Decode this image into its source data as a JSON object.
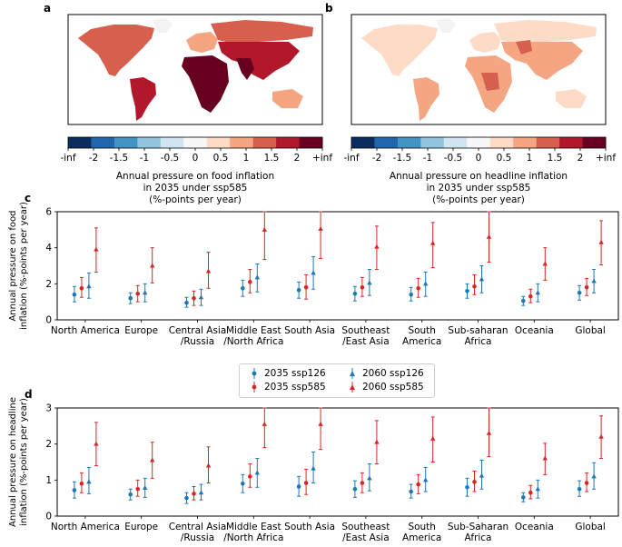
{
  "panel_labels": [
    "a",
    "b",
    "c",
    "d"
  ],
  "colorbar": {
    "tick_labels": [
      "-inf",
      "-2",
      "-1.5",
      "-1",
      "-0.5",
      "0",
      "0.5",
      "1",
      "1.5",
      "2",
      "+inf"
    ],
    "colors": [
      "#0b2d5e",
      "#2166ac",
      "#4393c3",
      "#92c5de",
      "#d1e5f0",
      "#f7f7f7",
      "#fddbc7",
      "#f4a582",
      "#d6604d",
      "#b2182b",
      "#67001f"
    ]
  },
  "map_a": {
    "caption_lines": [
      "Annual pressure on food inflation",
      "in 2035 under ssp585",
      "(%-points per year)"
    ]
  },
  "map_b": {
    "caption_lines": [
      "Annual pressure on headline inflation",
      "in 2035 under ssp585",
      "(%-points per year)"
    ]
  },
  "legend": {
    "items": [
      {
        "label": "2035 ssp126",
        "color": "#1f77b4",
        "marker": "circle"
      },
      {
        "label": "2060 ssp126",
        "color": "#1f77b4",
        "marker": "triangle"
      },
      {
        "label": "2035 ssp585",
        "color": "#d62728",
        "marker": "circle"
      },
      {
        "label": "2060 ssp585",
        "color": "#d62728",
        "marker": "triangle"
      }
    ]
  },
  "chart_data": [
    {
      "type": "errorbar",
      "panel": "c",
      "ylabel": "Annual pressure on food\ninflation (%-points per year)",
      "ylim": [
        0,
        6
      ],
      "yticks": [
        0,
        2,
        4,
        6
      ],
      "categories": [
        "North America",
        "Europe",
        "Central Asia\n/Russia",
        "Middle East\n/North Africa",
        "South Asia",
        "Southeast\n/East Asia",
        "South\nAmerica",
        "Sub-saharan\nAfrica",
        "Oceania",
        "Global"
      ],
      "series": [
        {
          "name": "2035 ssp126",
          "color": "#1f77b4",
          "marker": "circle",
          "values": [
            1.4,
            1.2,
            0.95,
            1.75,
            1.65,
            1.45,
            1.4,
            1.6,
            1.05,
            1.5
          ],
          "lower": [
            1.0,
            0.9,
            0.7,
            1.3,
            1.2,
            1.05,
            1.05,
            1.2,
            0.8,
            1.1
          ],
          "upper": [
            1.85,
            1.5,
            1.25,
            2.2,
            2.1,
            1.85,
            1.8,
            2.0,
            1.3,
            1.9
          ]
        },
        {
          "name": "2035 ssp585",
          "color": "#d62728",
          "marker": "circle",
          "values": [
            1.75,
            1.45,
            1.2,
            2.1,
            1.8,
            1.8,
            1.75,
            1.85,
            1.3,
            1.8
          ],
          "lower": [
            1.25,
            1.0,
            0.8,
            1.5,
            1.15,
            1.3,
            1.25,
            1.4,
            0.95,
            1.35
          ],
          "upper": [
            2.35,
            1.9,
            1.6,
            2.8,
            2.5,
            2.35,
            2.3,
            2.5,
            1.7,
            2.3
          ]
        },
        {
          "name": "2060 ssp126",
          "color": "#1f77b4",
          "marker": "triangle",
          "values": [
            1.85,
            1.5,
            1.25,
            2.35,
            2.6,
            2.05,
            2.0,
            2.25,
            1.5,
            2.15
          ],
          "lower": [
            1.2,
            1.0,
            0.8,
            1.55,
            1.7,
            1.35,
            1.3,
            1.5,
            1.0,
            1.5
          ],
          "upper": [
            2.6,
            2.0,
            1.7,
            3.1,
            3.5,
            2.8,
            2.65,
            3.0,
            2.0,
            2.8
          ]
        },
        {
          "name": "2060 ssp585",
          "color": "#d62728",
          "marker": "triangle",
          "values": [
            3.9,
            3.0,
            2.7,
            5.0,
            5.05,
            4.05,
            4.25,
            4.6,
            3.1,
            4.3
          ],
          "lower": [
            2.65,
            2.05,
            1.75,
            3.35,
            3.4,
            2.8,
            2.9,
            3.2,
            2.2,
            3.05
          ],
          "upper": [
            5.1,
            4.0,
            3.75,
            6.0,
            6.0,
            5.2,
            5.4,
            6.0,
            4.0,
            5.5
          ]
        }
      ]
    },
    {
      "type": "errorbar",
      "panel": "d",
      "ylabel": "Annual pressure on headline\ninflation (%-points per year)",
      "ylim": [
        0,
        3
      ],
      "yticks": [
        0,
        1,
        2,
        3
      ],
      "categories": [
        "North America",
        "Europe",
        "Central Asia\n/Russia",
        "Middle East\n/North Africa",
        "South Asia",
        "Southeast\n/East Asia",
        "South\nAmerica",
        "Sub-Saharan\nAfrica",
        "Oceania",
        "Global"
      ],
      "series": [
        {
          "name": "2035 ssp126",
          "color": "#1f77b4",
          "marker": "circle",
          "values": [
            0.72,
            0.6,
            0.5,
            0.9,
            0.82,
            0.75,
            0.68,
            0.8,
            0.52,
            0.75
          ],
          "lower": [
            0.5,
            0.45,
            0.35,
            0.65,
            0.55,
            0.52,
            0.5,
            0.55,
            0.4,
            0.55
          ],
          "upper": [
            0.95,
            0.75,
            0.65,
            1.15,
            1.1,
            0.98,
            0.88,
            1.05,
            0.65,
            0.98
          ]
        },
        {
          "name": "2035 ssp585",
          "color": "#d62728",
          "marker": "circle",
          "values": [
            0.9,
            0.75,
            0.62,
            1.1,
            0.92,
            0.92,
            0.88,
            0.95,
            0.65,
            0.92
          ],
          "lower": [
            0.65,
            0.55,
            0.45,
            0.8,
            0.6,
            0.65,
            0.62,
            0.68,
            0.48,
            0.68
          ],
          "upper": [
            1.2,
            1.0,
            0.82,
            1.45,
            1.3,
            1.2,
            1.15,
            1.25,
            0.85,
            1.2
          ]
        },
        {
          "name": "2060 ssp126",
          "color": "#1f77b4",
          "marker": "triangle",
          "values": [
            0.95,
            0.78,
            0.65,
            1.2,
            1.32,
            1.05,
            1.0,
            1.12,
            0.75,
            1.1
          ],
          "lower": [
            0.62,
            0.52,
            0.45,
            0.8,
            0.92,
            0.7,
            0.68,
            0.75,
            0.5,
            0.75
          ],
          "upper": [
            1.35,
            1.05,
            0.88,
            1.6,
            1.78,
            1.45,
            1.35,
            1.55,
            1.0,
            1.48
          ]
        },
        {
          "name": "2060 ssp585",
          "color": "#d62728",
          "marker": "triangle",
          "values": [
            2.0,
            1.55,
            1.4,
            2.55,
            2.55,
            2.05,
            2.15,
            2.3,
            1.6,
            2.2
          ],
          "lower": [
            1.4,
            1.05,
            0.92,
            1.9,
            1.85,
            1.45,
            1.5,
            1.65,
            1.15,
            1.6
          ],
          "upper": [
            2.6,
            2.05,
            1.92,
            3.0,
            3.0,
            2.65,
            2.75,
            3.0,
            2.02,
            2.78
          ]
        }
      ]
    }
  ]
}
